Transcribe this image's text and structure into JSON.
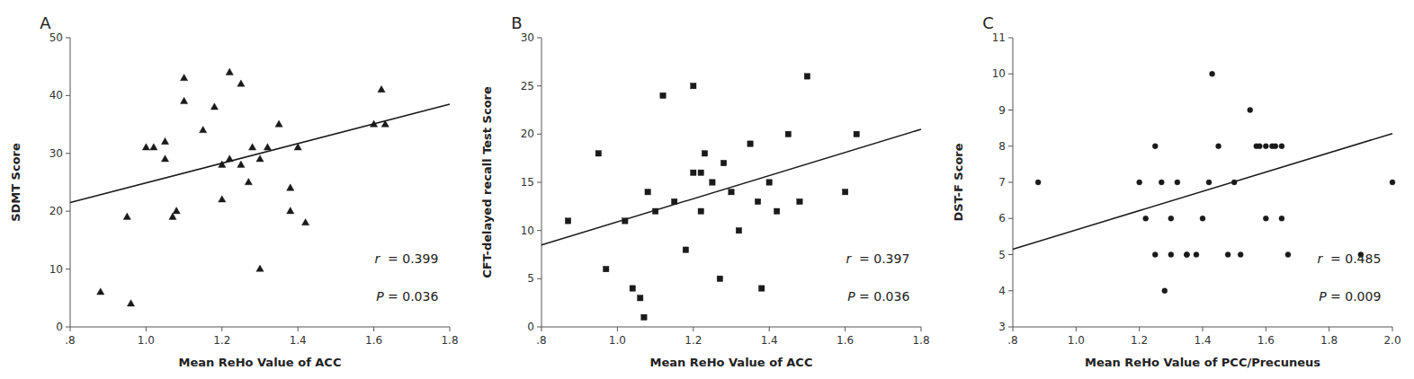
{
  "chart_data": [
    {
      "type": "scatter",
      "title": "A",
      "x_label": "Mean ReHo Value of ACC",
      "y_label": "SDMT Score",
      "xlim": [
        0.8,
        1.8
      ],
      "ylim": [
        0,
        50
      ],
      "xticks": [
        {
          "value": 0.8,
          "label": ".8"
        },
        {
          "value": 1.0,
          "label": "1.0"
        },
        1.2,
        1.4,
        1.6,
        1.8
      ],
      "yticks": [
        0,
        10,
        20,
        30,
        40,
        50
      ],
      "annotations": [
        "r  = 0.399",
        "P = 0.036"
      ],
      "series": [
        {
          "type": "scatter",
          "marker": "triangle",
          "color": "#1a1a1a",
          "x": [
            0.88,
            0.95,
            0.96,
            1.0,
            1.02,
            1.05,
            1.05,
            1.07,
            1.08,
            1.1,
            1.1,
            1.15,
            1.18,
            1.2,
            1.2,
            1.22,
            1.22,
            1.25,
            1.25,
            1.27,
            1.28,
            1.3,
            1.3,
            1.32,
            1.35,
            1.38,
            1.38,
            1.4,
            1.42,
            1.6,
            1.62,
            1.63
          ],
          "values": [
            6,
            19,
            4,
            31,
            31,
            29,
            32,
            19,
            20,
            43,
            39,
            34,
            38,
            28,
            22,
            29,
            44,
            28,
            42,
            25,
            31,
            10,
            29,
            31,
            35,
            24,
            20,
            31,
            18,
            35,
            41,
            35
          ]
        },
        {
          "type": "line",
          "color": "#1a1a1a",
          "x": [
            0.8,
            1.8
          ],
          "values": [
            21.5,
            38.5
          ]
        }
      ]
    },
    {
      "type": "scatter",
      "title": "B",
      "x_label": "Mean ReHo Value of ACC",
      "y_label": "CFT-delayed recall Test Score",
      "xlim": [
        0.8,
        1.8
      ],
      "ylim": [
        0,
        30
      ],
      "xticks": [
        {
          "value": 0.8,
          "label": ".8"
        },
        {
          "value": 1.0,
          "label": "1.0"
        },
        1.2,
        1.4,
        1.6,
        1.8
      ],
      "yticks": [
        0,
        5,
        10,
        15,
        20,
        25,
        30
      ],
      "annotations": [
        "r  = 0.397",
        "P = 0.036"
      ],
      "series": [
        {
          "type": "scatter",
          "marker": "square",
          "color": "#1a1a1a",
          "x": [
            0.87,
            0.95,
            0.97,
            1.02,
            1.04,
            1.06,
            1.07,
            1.08,
            1.1,
            1.12,
            1.15,
            1.18,
            1.2,
            1.2,
            1.22,
            1.22,
            1.23,
            1.25,
            1.27,
            1.28,
            1.3,
            1.32,
            1.35,
            1.37,
            1.38,
            1.4,
            1.42,
            1.45,
            1.48,
            1.5,
            1.6,
            1.63
          ],
          "values": [
            11,
            18,
            6,
            11,
            4,
            3,
            1,
            14,
            12,
            24,
            13,
            8,
            16,
            25,
            12,
            16,
            18,
            15,
            5,
            17,
            14,
            10,
            19,
            13,
            4,
            15,
            12,
            20,
            13,
            26,
            14,
            20
          ]
        },
        {
          "type": "line",
          "color": "#1a1a1a",
          "x": [
            0.8,
            1.8
          ],
          "values": [
            8.5,
            20.5
          ]
        }
      ]
    },
    {
      "type": "scatter",
      "title": "C",
      "x_label": "Mean ReHo Value of PCC/Precuneus",
      "y_label": "DST-F Score",
      "xlim": [
        0.8,
        2.0
      ],
      "ylim": [
        3,
        11
      ],
      "xticks": [
        {
          "value": 0.8,
          "label": ".8"
        },
        {
          "value": 1.0,
          "label": "1.0"
        },
        1.2,
        1.4,
        1.6,
        1.8,
        {
          "value": 2.0,
          "label": "2.0"
        }
      ],
      "yticks": [
        3,
        4,
        5,
        6,
        7,
        8,
        9,
        10,
        11
      ],
      "annotations": [
        "r  = 0.485",
        "P = 0.009"
      ],
      "series": [
        {
          "type": "scatter",
          "marker": "circle",
          "color": "#1a1a1a",
          "x": [
            0.88,
            1.2,
            1.22,
            1.25,
            1.25,
            1.27,
            1.28,
            1.3,
            1.3,
            1.32,
            1.35,
            1.35,
            1.38,
            1.4,
            1.42,
            1.43,
            1.45,
            1.48,
            1.5,
            1.52,
            1.55,
            1.57,
            1.58,
            1.6,
            1.6,
            1.62,
            1.63,
            1.65,
            1.65,
            1.67,
            1.9,
            2.0
          ],
          "values": [
            7,
            7,
            6,
            5,
            8,
            7,
            4,
            6,
            5,
            7,
            5,
            5,
            5,
            6,
            7,
            10,
            8,
            5,
            7,
            5,
            9,
            8,
            8,
            8,
            6,
            8,
            8,
            6,
            8,
            5,
            5,
            7
          ]
        },
        {
          "type": "line",
          "color": "#1a1a1a",
          "x": [
            0.8,
            2.0
          ],
          "values": [
            5.15,
            8.35
          ]
        }
      ]
    }
  ]
}
